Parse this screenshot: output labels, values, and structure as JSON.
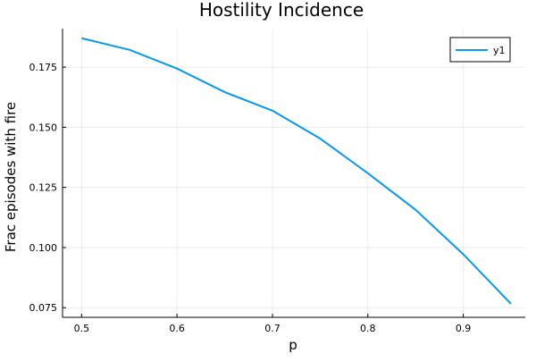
{
  "chart_data": {
    "type": "line",
    "title": "Hostility Incidence",
    "xlabel": "p",
    "ylabel": "Frac episodes with fire",
    "xlim": [
      0.48,
      0.965
    ],
    "ylim": [
      0.071,
      0.191
    ],
    "xticks": [
      0.5,
      0.6,
      0.7,
      0.8,
      0.9
    ],
    "xtick_labels": [
      "0.5",
      "0.6",
      "0.7",
      "0.8",
      "0.9"
    ],
    "yticks": [
      0.075,
      0.1,
      0.125,
      0.15,
      0.175
    ],
    "ytick_labels": [
      "0.075",
      "0.100",
      "0.125",
      "0.150",
      "0.175"
    ],
    "grid": true,
    "legend_position": "top-right",
    "series": [
      {
        "name": "y1",
        "color": "#0b97e3",
        "x": [
          0.5,
          0.55,
          0.6,
          0.65,
          0.7,
          0.75,
          0.8,
          0.85,
          0.9,
          0.95
        ],
        "values": [
          0.187,
          0.1822,
          0.1744,
          0.1646,
          0.1569,
          0.1453,
          0.1309,
          0.1157,
          0.0972,
          0.0766
        ]
      }
    ]
  }
}
